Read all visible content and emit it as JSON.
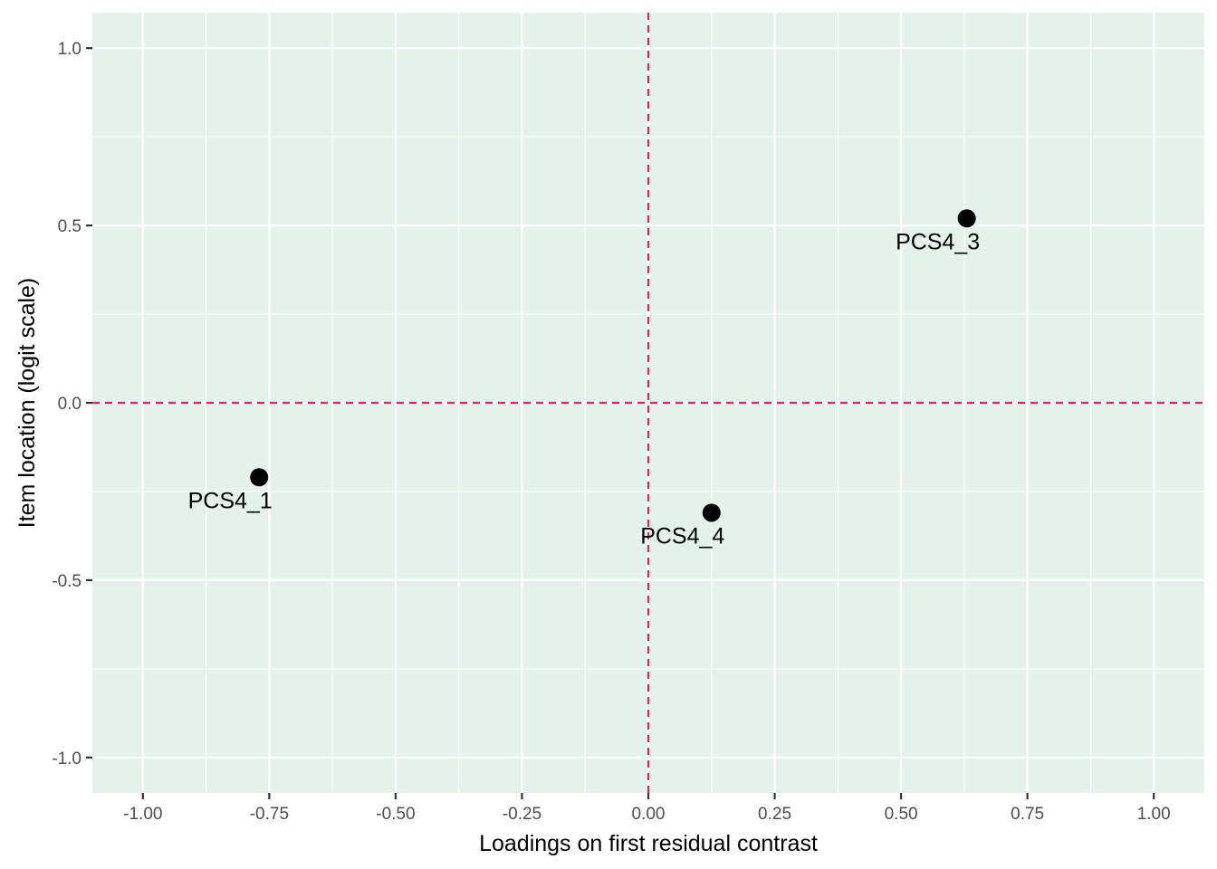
{
  "chart_data": {
    "type": "scatter",
    "title": "",
    "xlabel": "Loadings on first residual contrast",
    "ylabel": "Item location (logit scale)",
    "xlim": [
      -1.1,
      1.1
    ],
    "ylim": [
      -1.1,
      1.1
    ],
    "x_ticks": [
      -1.0,
      -0.75,
      -0.5,
      -0.25,
      0.0,
      0.25,
      0.5,
      0.75,
      1.0
    ],
    "x_tick_labels": [
      "-1.00",
      "-0.75",
      "-0.50",
      "-0.25",
      "0.00",
      "0.25",
      "0.50",
      "0.75",
      "1.00"
    ],
    "y_ticks": [
      -1.0,
      -0.5,
      0.0,
      0.5,
      1.0
    ],
    "y_tick_labels": [
      "-1.0",
      "-0.5",
      "0.0",
      "0.5",
      "1.0"
    ],
    "grid": true,
    "reference_lines": {
      "x": 0,
      "y": 0,
      "style": "dashed"
    },
    "points": [
      {
        "label": "PCS4_1",
        "x": -0.77,
        "y": -0.21
      },
      {
        "label": "PCS4_3",
        "x": 0.63,
        "y": 0.52
      },
      {
        "label": "PCS4_4",
        "x": 0.125,
        "y": -0.31
      }
    ],
    "colors": {
      "panel_background": "#e5f2eb",
      "grid": "#ffffff",
      "reference_line": "#e0245e",
      "point": "#000000"
    }
  }
}
